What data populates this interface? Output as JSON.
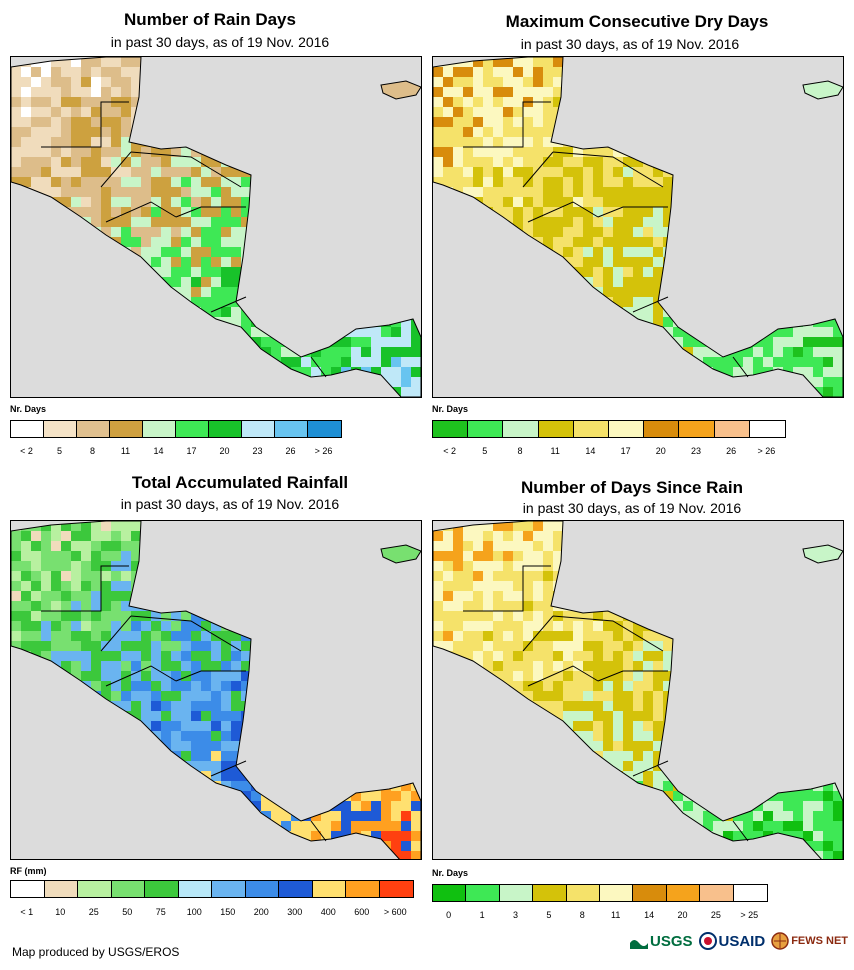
{
  "panels": [
    {
      "title": "Number of Rain Days",
      "subtitle": "in past 30 days, as of 19 Nov. 2016",
      "legend_title": "Nr. Days",
      "legend_colors": [
        "#ffffff",
        "#f5e3c7",
        "#e0c08f",
        "#cfa040",
        "#c8f5c8",
        "#3ee855",
        "#18c22a",
        "#bfe8f8",
        "#68c4f0",
        "#1e8fd5"
      ],
      "legend_labels": [
        "< 2",
        "5",
        "8",
        "11",
        "14",
        "17",
        "20",
        "23",
        "26",
        "> 26"
      ],
      "palette": [
        "#ffffff",
        "#f0dcbc",
        "#ddbd8a",
        "#cda13f",
        "#c8f5c8",
        "#3ee855",
        "#18c22a",
        "#bfe8f8",
        "#68c4f0"
      ]
    },
    {
      "title": "Maximum Consecutive Dry Days",
      "subtitle": "in past 30 days, as of 19 Nov. 2016",
      "legend_title": "Nr. Days",
      "legend_colors": [
        "#1ec21e",
        "#3ee855",
        "#c8f5c8",
        "#d4c20a",
        "#f5e26a",
        "#fcf8c0",
        "#d88c0c",
        "#f5a31c",
        "#f8c08c",
        "#ffffff"
      ],
      "legend_labels": [
        "< 2",
        "5",
        "8",
        "11",
        "14",
        "17",
        "20",
        "23",
        "26",
        "> 26"
      ],
      "palette": [
        "#1ec21e",
        "#3ee855",
        "#c8f5c8",
        "#d4c20a",
        "#f5e26a",
        "#fcf8c0",
        "#d88c0c"
      ]
    },
    {
      "title": "Total Accumulated Rainfall",
      "subtitle": "in past 30 days, as of 19 Nov. 2016",
      "legend_title": "RF (mm)",
      "legend_colors": [
        "#ffffff",
        "#f0dcbc",
        "#b8f0a0",
        "#78e070",
        "#3cc83c",
        "#b8e8f8",
        "#6ab4f0",
        "#3c8ce8",
        "#1e5ad6",
        "#ffe070",
        "#ffa020",
        "#ff4010"
      ],
      "legend_labels": [
        "< 1",
        "10",
        "25",
        "50",
        "75",
        "100",
        "150",
        "200",
        "300",
        "400",
        "600",
        "> 600"
      ],
      "palette": [
        "#f0dcbc",
        "#b8f0a0",
        "#78e070",
        "#3cc83c",
        "#6ab4f0",
        "#3c8ce8",
        "#1e5ad6",
        "#ffe070",
        "#ffa020",
        "#ff4010"
      ]
    },
    {
      "title": "Number of Days Since Rain",
      "subtitle": "in past 30 days, as of 19 Nov. 2016",
      "legend_title": "Nr. Days",
      "legend_colors": [
        "#10c010",
        "#3ee855",
        "#c8f5c8",
        "#d4c20a",
        "#f5e26a",
        "#fcf8c0",
        "#d88c0c",
        "#f5a31c",
        "#f8c08c",
        "#ffffff"
      ],
      "legend_labels": [
        "0",
        "1",
        "3",
        "5",
        "8",
        "11",
        "14",
        "20",
        "25",
        "> 25"
      ],
      "palette": [
        "#10c010",
        "#3ee855",
        "#c8f5c8",
        "#d4c20a",
        "#f5e26a",
        "#fcf8c0",
        "#f5a31c"
      ]
    }
  ],
  "credit": "Map produced by USGS/EROS",
  "logos": [
    "USGS",
    "USAID",
    "FEWS NET"
  ]
}
